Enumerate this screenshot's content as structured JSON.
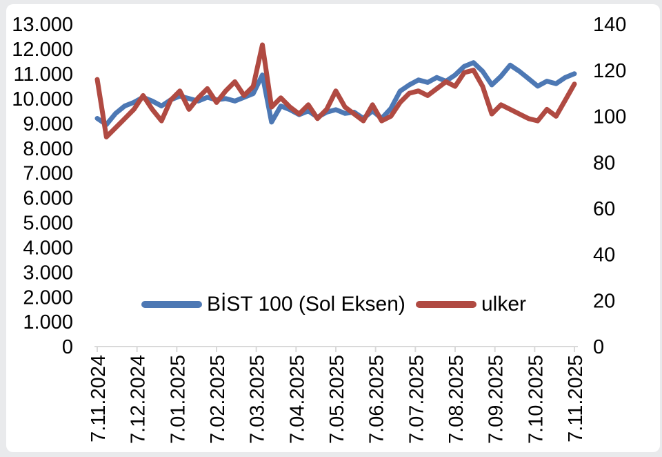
{
  "window": {
    "background_color": "#e9eaec",
    "panel_color": "#ffffff"
  },
  "chart_data": {
    "type": "line",
    "title": "",
    "xlabel": "",
    "ylabel_left": "",
    "ylabel_right": "",
    "grid": false,
    "legend_position": "bottom-center-inside",
    "axis_color": "#d9d9d9",
    "text_color": "#000000",
    "x_axis": {
      "tick_labels": [
        "7.11.2024",
        "7.12.2024",
        "7.01.2025",
        "7.02.2025",
        "7.03.2025",
        "7.04.2025",
        "7.05.2025",
        "7.06.2025",
        "7.07.2025",
        "7.08.2025",
        "7.09.2025",
        "7.10.2025",
        "7.11.2025"
      ]
    },
    "left_axis": {
      "min": 0,
      "max": 13000,
      "step": 1000,
      "tick_labels": [
        "13.000",
        "12.000",
        "11.000",
        "10.000",
        "9.000",
        "8.000",
        "7.000",
        "6.000",
        "5.000",
        "4.000",
        "3.000",
        "2.000",
        "1.000",
        "0"
      ]
    },
    "right_axis": {
      "min": 0,
      "max": 140,
      "step": 20,
      "tick_labels": [
        "140",
        "120",
        "100",
        "80",
        "60",
        "40",
        "20",
        "0"
      ]
    },
    "series": [
      {
        "name": "BİST 100 (Sol Eksen)",
        "axis": "left",
        "color": "#4d78b4",
        "values": [
          9200,
          8950,
          9400,
          9700,
          9850,
          10050,
          9900,
          9700,
          9950,
          10100,
          10000,
          9900,
          10050,
          9950,
          10000,
          9900,
          10050,
          10200,
          10950,
          9050,
          9700,
          9550,
          9350,
          9500,
          9250,
          9450,
          9550,
          9400,
          9450,
          9200,
          9500,
          9200,
          9600,
          10300,
          10550,
          10750,
          10650,
          10850,
          10700,
          10950,
          11300,
          11450,
          11100,
          10550,
          10900,
          11350,
          11100,
          10800,
          10500,
          10700,
          10600,
          10850,
          11000
        ]
      },
      {
        "name": "ulker",
        "axis": "right",
        "color": "#b04a42",
        "values": [
          116,
          91,
          95,
          99,
          103,
          109,
          103,
          98,
          107,
          111,
          103,
          108,
          112,
          106,
          111,
          115,
          109,
          113,
          131,
          104,
          108,
          104,
          101,
          105,
          99,
          103,
          111,
          104,
          101,
          98,
          105,
          98,
          100,
          106,
          110,
          111,
          109,
          112,
          115,
          113,
          119,
          120,
          113,
          101,
          105,
          103,
          101,
          99,
          98,
          103,
          100,
          107,
          114
        ]
      }
    ]
  }
}
